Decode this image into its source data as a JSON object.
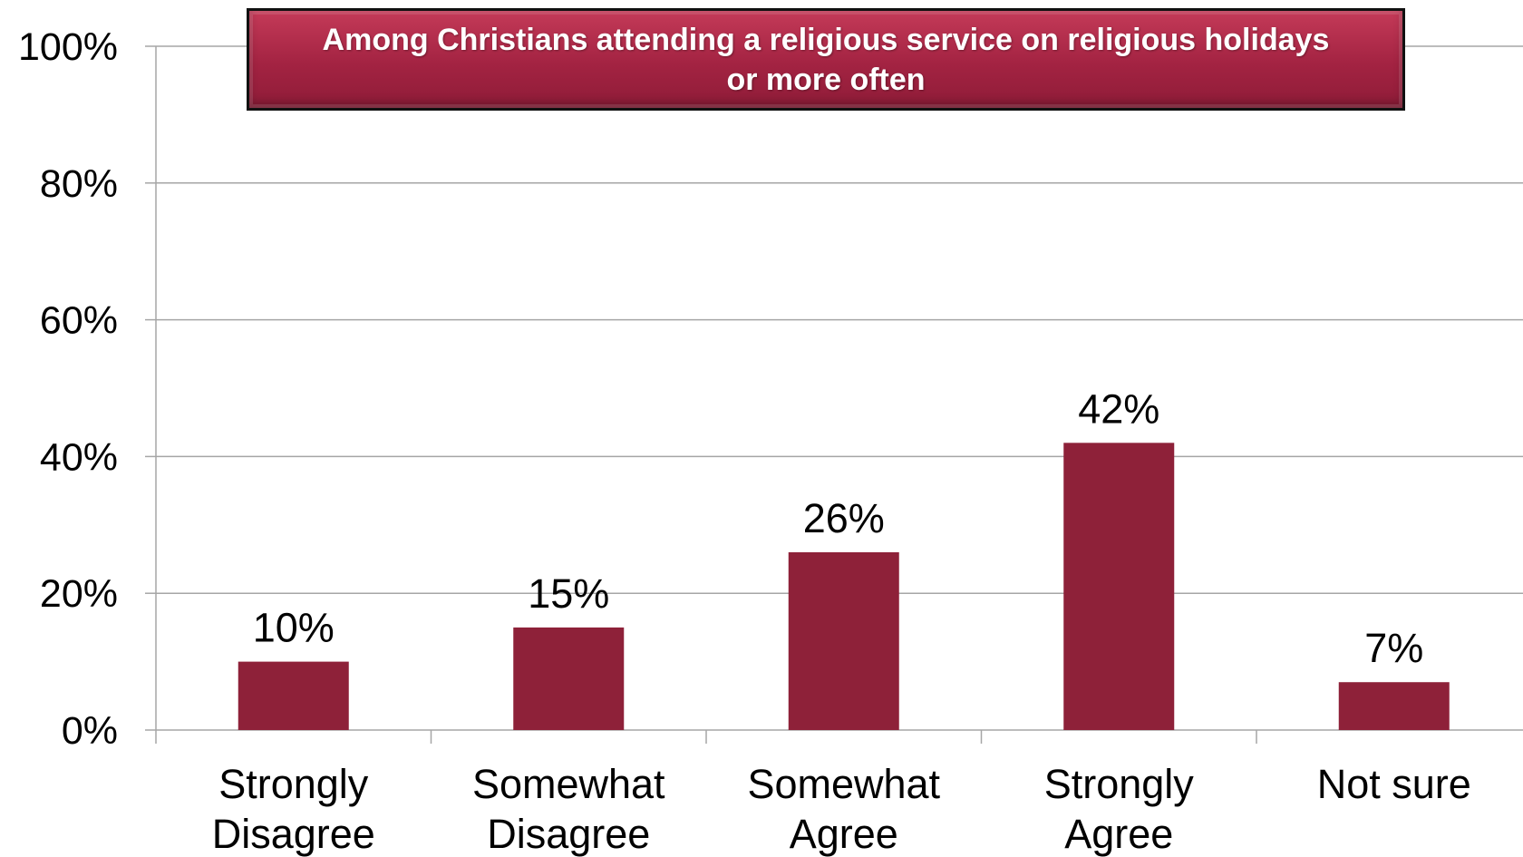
{
  "chart_data": {
    "type": "bar",
    "title_lines": [
      "Among Christians attending a religious service on religious holidays",
      "or more often"
    ],
    "categories": [
      [
        "Strongly",
        "Disagree"
      ],
      [
        "Somewhat",
        "Disagree"
      ],
      [
        "Somewhat",
        "Agree"
      ],
      [
        "Strongly",
        "Agree"
      ],
      [
        "Not sure"
      ]
    ],
    "values": [
      10,
      15,
      26,
      42,
      7
    ],
    "data_labels": [
      "10%",
      "15%",
      "26%",
      "42%",
      "7%"
    ],
    "y_ticks": [
      "0%",
      "20%",
      "40%",
      "60%",
      "80%",
      "100%"
    ],
    "ylim": [
      0,
      100
    ],
    "grid": true,
    "bar_color": "#8e2139",
    "grid_color": "#a6a6a6",
    "title_color": "#a32342"
  }
}
